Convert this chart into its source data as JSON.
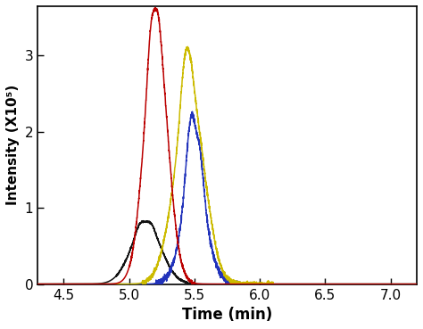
{
  "xlim": [
    4.3,
    7.2
  ],
  "ylim": [
    0,
    3.65
  ],
  "xlabel": "Time (min)",
  "ylabel": "Intensity (X10⁵)",
  "xticks": [
    4.5,
    5.0,
    5.5,
    6.0,
    6.5,
    7.0
  ],
  "yticks": [
    0,
    1.0,
    2.0,
    3.0
  ],
  "background_color": "#ffffff",
  "line_width": 1.1,
  "red_color": "#bb0000",
  "black_color": "#111111",
  "blue_color": "#2233bb",
  "yellow_color": "#ccbb00"
}
